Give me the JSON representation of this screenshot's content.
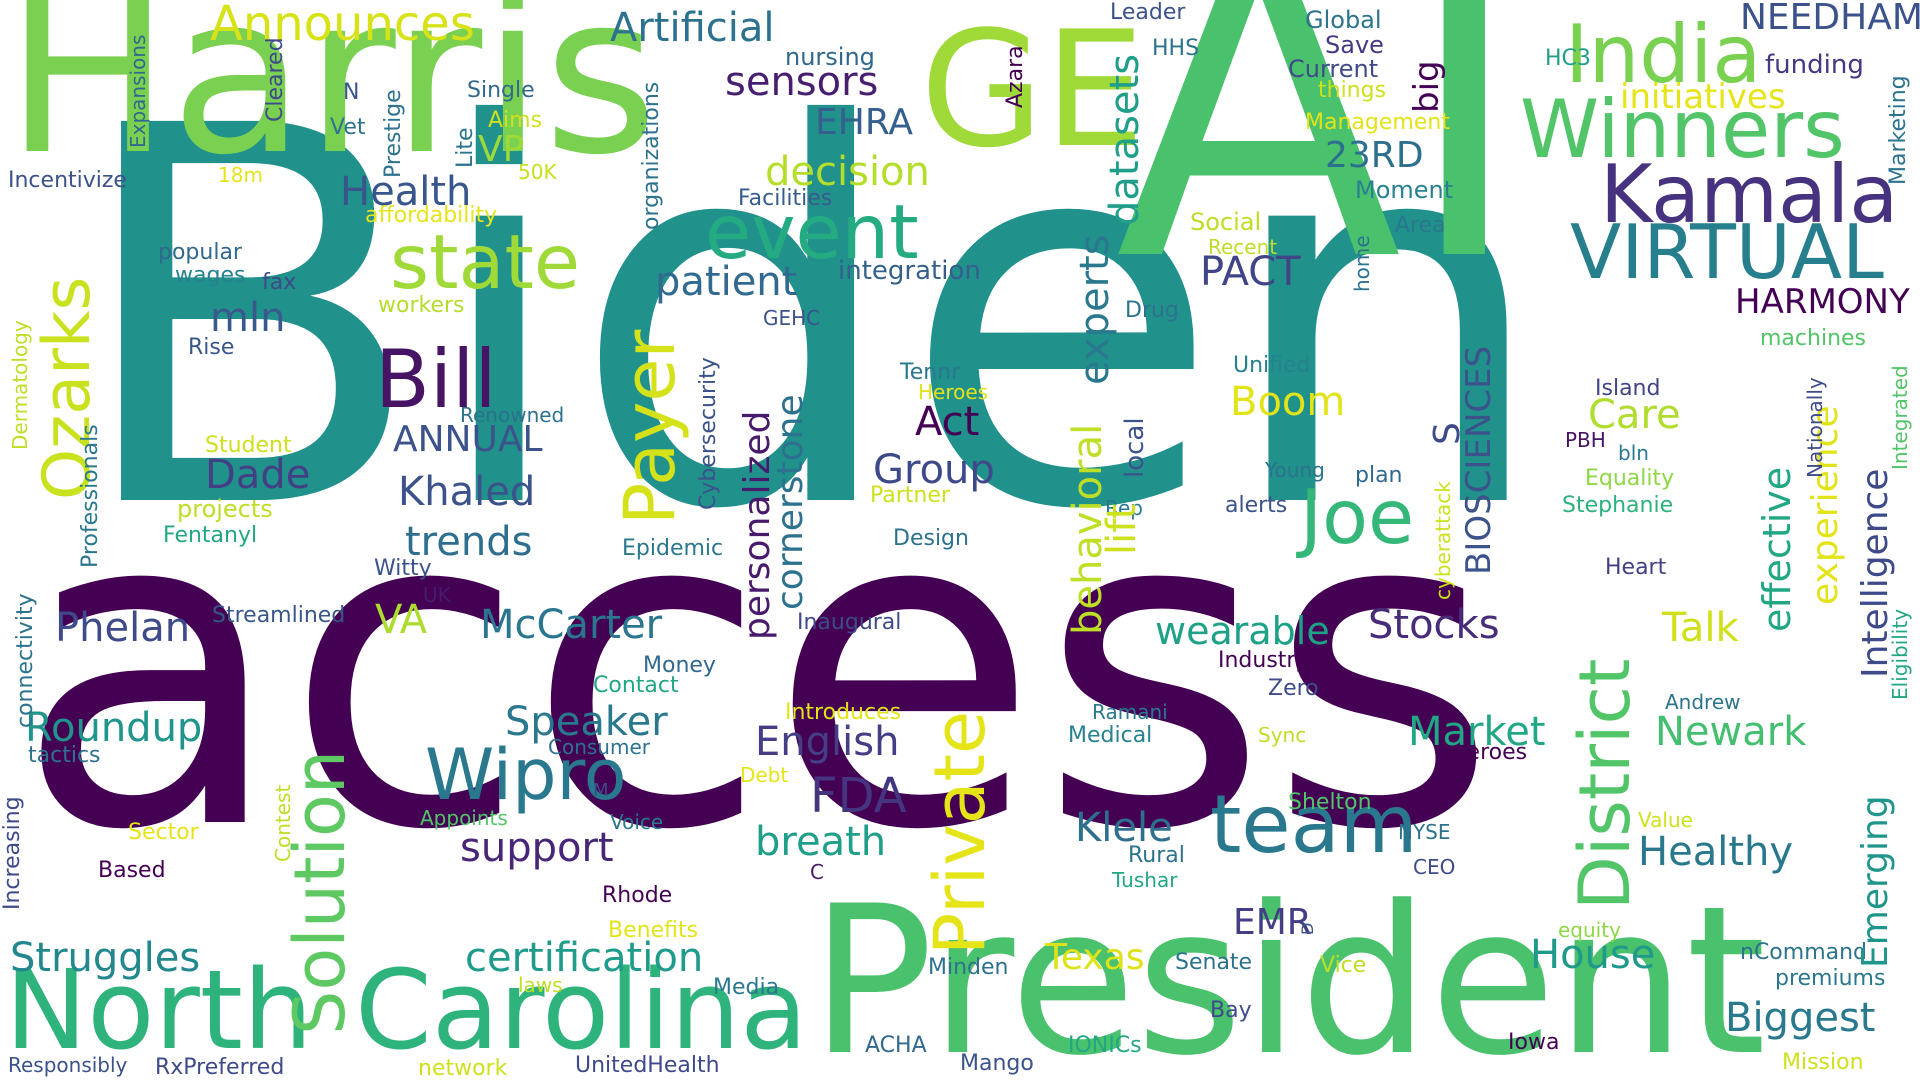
{
  "palette": {
    "purple": "#440154",
    "indigo": "#3e4a89",
    "blue": "#31688e",
    "teal": "#21918c",
    "green": "#35b779",
    "lime": "#90d743",
    "yellow": "#fde725"
  },
  "words": [
    {
      "text": "Biden",
      "color": "#21918c"
    },
    {
      "text": "access",
      "color": "#440154"
    },
    {
      "text": "AI",
      "color": "#4ac16d"
    },
    {
      "text": "Harris",
      "color": "#7ad151"
    },
    {
      "text": "President",
      "color": "#4ac16d"
    },
    {
      "text": "GE",
      "color": "#a0da39"
    },
    {
      "text": "North",
      "color": "#2eb37c"
    },
    {
      "text": "Carolina",
      "color": "#2eb37c"
    },
    {
      "text": "India",
      "color": "#7ad151"
    },
    {
      "text": "Winners",
      "color": "#52c569"
    },
    {
      "text": "Kamala",
      "color": "#46327e"
    },
    {
      "text": "VIRTUAL",
      "color": "#277f8e"
    },
    {
      "text": "team",
      "color": "#2a788e"
    },
    {
      "text": "Bill",
      "color": "#471365"
    },
    {
      "text": "state",
      "color": "#a0da39"
    },
    {
      "text": "event",
      "color": "#25ab82"
    },
    {
      "text": "Joe",
      "color": "#35b779"
    },
    {
      "text": "Wipro",
      "color": "#2a788e"
    },
    {
      "text": "Solution",
      "color": "#5ec962"
    },
    {
      "text": "Ozarks",
      "color": "#cae11f"
    },
    {
      "text": "Payer",
      "color": "#d5e21a"
    },
    {
      "text": "Private",
      "color": "#e5e419"
    },
    {
      "text": "District",
      "color": "#52c569"
    },
    {
      "text": "Announces",
      "color": "#d8e219"
    },
    {
      "text": "Artificial",
      "color": "#2c728e"
    },
    {
      "text": "NEEDHAM",
      "color": "#3b528b"
    },
    {
      "text": "initiatives",
      "color": "#e7e419"
    },
    {
      "text": "funding",
      "color": "#443983"
    },
    {
      "text": "nursing",
      "color": "#31688e"
    },
    {
      "text": "sensors",
      "color": "#481f70"
    },
    {
      "text": "EHRA",
      "color": "#355f8d"
    },
    {
      "text": "decision",
      "color": "#b5de2b"
    },
    {
      "text": "23RD",
      "color": "#2d708e"
    },
    {
      "text": "PACT",
      "color": "#414487"
    },
    {
      "text": "HARMONY",
      "color": "#440154"
    },
    {
      "text": "Health",
      "color": "#39568c"
    },
    {
      "text": "patient",
      "color": "#306a8e"
    },
    {
      "text": "integration",
      "color": "#355f8d"
    },
    {
      "text": "mln",
      "color": "#38598c"
    },
    {
      "text": "Dade",
      "color": "#423f85"
    },
    {
      "text": "Khaled",
      "color": "#3b528b"
    },
    {
      "text": "trends",
      "color": "#2e6e8e"
    },
    {
      "text": "ANNUAL",
      "color": "#3b528b"
    },
    {
      "text": "Act",
      "color": "#440154"
    },
    {
      "text": "Group",
      "color": "#3e4989"
    },
    {
      "text": "Boom",
      "color": "#e2e418"
    },
    {
      "text": "Care",
      "color": "#b0dd2f"
    },
    {
      "text": "Stocks",
      "color": "#472c7a"
    },
    {
      "text": "Talk",
      "color": "#d0e11c"
    },
    {
      "text": "Phelan",
      "color": "#3e4a89"
    },
    {
      "text": "McCarter",
      "color": "#2a768e"
    },
    {
      "text": "VA",
      "color": "#addc30"
    },
    {
      "text": "wearable",
      "color": "#1fa188"
    },
    {
      "text": "Roundup",
      "color": "#1f958b"
    },
    {
      "text": "Speaker",
      "color": "#2a788e"
    },
    {
      "text": "English",
      "color": "#433e85"
    },
    {
      "text": "FDA",
      "color": "#453581"
    },
    {
      "text": "support",
      "color": "#482677"
    },
    {
      "text": "breath",
      "color": "#1f9e89"
    },
    {
      "text": "Klele",
      "color": "#2e6f8e"
    },
    {
      "text": "Market",
      "color": "#22a785"
    },
    {
      "text": "Newark",
      "color": "#44bf70"
    },
    {
      "text": "Healthy",
      "color": "#2a788e"
    },
    {
      "text": "Struggles",
      "color": "#23888e"
    },
    {
      "text": "certification",
      "color": "#1e9b8a"
    },
    {
      "text": "Texas",
      "color": "#dde318"
    },
    {
      "text": "House",
      "color": "#1f9a8a"
    },
    {
      "text": "Biggest",
      "color": "#29798e"
    },
    {
      "text": "EMR",
      "color": "#433e85"
    },
    {
      "text": "Global",
      "color": "#2c738e"
    },
    {
      "text": "Save",
      "color": "#443a83"
    },
    {
      "text": "Current",
      "color": "#3e4a89"
    },
    {
      "text": "things",
      "color": "#cde11d"
    },
    {
      "text": "Management",
      "color": "#e2e418"
    },
    {
      "text": "HC3",
      "color": "#1f9e89"
    },
    {
      "text": "Leader",
      "color": "#3b528b"
    },
    {
      "text": "HHS",
      "color": "#2c738e"
    },
    {
      "text": "Moment",
      "color": "#26828e"
    },
    {
      "text": "Area",
      "color": "#2a788e"
    },
    {
      "text": "Social",
      "color": "#bddf26"
    },
    {
      "text": "Recent",
      "color": "#bddf26"
    },
    {
      "text": "Facilities",
      "color": "#365c8d"
    },
    {
      "text": "Single",
      "color": "#31688e"
    },
    {
      "text": "Aims",
      "color": "#cde11d"
    },
    {
      "text": "50K",
      "color": "#c8e020"
    },
    {
      "text": "VP",
      "color": "#9dd93b"
    },
    {
      "text": "18m",
      "color": "#e5e419"
    },
    {
      "text": "Incentivize",
      "color": "#3b528b"
    },
    {
      "text": "affordability",
      "color": "#e7e419"
    },
    {
      "text": "N",
      "color": "#39568c"
    },
    {
      "text": "Vet",
      "color": "#2c728e"
    },
    {
      "text": "popular",
      "color": "#31688e"
    },
    {
      "text": "wages",
      "color": "#26828e"
    },
    {
      "text": "fax",
      "color": "#3e4a89"
    },
    {
      "text": "Rise",
      "color": "#39568c"
    },
    {
      "text": "workers",
      "color": "#b5de2b"
    },
    {
      "text": "Student",
      "color": "#cde11d"
    },
    {
      "text": "projects",
      "color": "#bddf26"
    },
    {
      "text": "Fentanyl",
      "color": "#22a785"
    },
    {
      "text": "Renowned",
      "color": "#2c728e"
    },
    {
      "text": "Witty",
      "color": "#3b528b"
    },
    {
      "text": "UK",
      "color": "#481a6c"
    },
    {
      "text": "Streamlined",
      "color": "#39568c"
    },
    {
      "text": "Epidemic",
      "color": "#2a788e"
    },
    {
      "text": "Inaugural",
      "color": "#3e4a89"
    },
    {
      "text": "GEHC",
      "color": "#3b528b"
    },
    {
      "text": "Drug",
      "color": "#2c738e"
    },
    {
      "text": "Tennr",
      "color": "#2a788e"
    },
    {
      "text": "Heroes",
      "color": "#e2e418"
    },
    {
      "text": "Partner",
      "color": "#cde11d"
    },
    {
      "text": "Design",
      "color": "#2c728e"
    },
    {
      "text": "Unified",
      "color": "#26828e"
    },
    {
      "text": "Young",
      "color": "#2c738e"
    },
    {
      "text": "alerts",
      "color": "#3b528b"
    },
    {
      "text": "plan",
      "color": "#31688e"
    },
    {
      "text": "Rep",
      "color": "#2a788e"
    },
    {
      "text": "Island",
      "color": "#414487"
    },
    {
      "text": "PBH",
      "color": "#471365"
    },
    {
      "text": "bln",
      "color": "#2a788e"
    },
    {
      "text": "Equality",
      "color": "#8fd744"
    },
    {
      "text": "Stephanie",
      "color": "#2db27d"
    },
    {
      "text": "Heart",
      "color": "#423f85"
    },
    {
      "text": "machines",
      "color": "#52c569"
    },
    {
      "text": "Money",
      "color": "#31688e"
    },
    {
      "text": "Contact",
      "color": "#22a785"
    },
    {
      "text": "Consumer",
      "color": "#2c728e"
    },
    {
      "text": "Industry",
      "color": "#440154"
    },
    {
      "text": "Zero",
      "color": "#3e4a89"
    },
    {
      "text": "Introduces",
      "color": "#e2e418"
    },
    {
      "text": "Debt",
      "color": "#e5e419"
    },
    {
      "text": "Ramani",
      "color": "#2a788e"
    },
    {
      "text": "Medical",
      "color": "#26828e"
    },
    {
      "text": "Sync",
      "color": "#bddf26"
    },
    {
      "text": "zeroes",
      "color": "#440154"
    },
    {
      "text": "Andrew",
      "color": "#2c738e"
    },
    {
      "text": "Shelton",
      "color": "#52c569"
    },
    {
      "text": "NYSE",
      "color": "#2c728e"
    },
    {
      "text": "CEO",
      "color": "#3e4a89"
    },
    {
      "text": "Value",
      "color": "#cde11d"
    },
    {
      "text": "Rural",
      "color": "#2c738e"
    },
    {
      "text": "Tushar",
      "color": "#22a785"
    },
    {
      "text": "Appoints",
      "color": "#52c569"
    },
    {
      "text": "Voice",
      "color": "#2a788e"
    },
    {
      "text": "M",
      "color": "#3e4a89"
    },
    {
      "text": "C",
      "color": "#481a6c"
    },
    {
      "text": "Rhode",
      "color": "#440154"
    },
    {
      "text": "Benefits",
      "color": "#e2e418"
    },
    {
      "text": "Sector",
      "color": "#e5e419"
    },
    {
      "text": "Based",
      "color": "#440154"
    },
    {
      "text": "tactics",
      "color": "#2c738e"
    },
    {
      "text": "laws",
      "color": "#bddf26"
    },
    {
      "text": "Media",
      "color": "#2a788e"
    },
    {
      "text": "Minden",
      "color": "#2c728e"
    },
    {
      "text": "Senate",
      "color": "#2c738e"
    },
    {
      "text": "Vice",
      "color": "#bddf26"
    },
    {
      "text": "Bay",
      "color": "#3e4a89"
    },
    {
      "text": "equity",
      "color": "#8fd744"
    },
    {
      "text": "nCommand",
      "color": "#2c738e"
    },
    {
      "text": "premiums",
      "color": "#2a788e"
    },
    {
      "text": "Iowa",
      "color": "#440154"
    },
    {
      "text": "Mission",
      "color": "#cde11d"
    },
    {
      "text": "Responsibly",
      "color": "#3b528b"
    },
    {
      "text": "RxPreferred",
      "color": "#3e4a89"
    },
    {
      "text": "network",
      "color": "#cde11d"
    },
    {
      "text": "UnitedHealth",
      "color": "#3e4a89"
    },
    {
      "text": "ACHA",
      "color": "#31688e"
    },
    {
      "text": "Mango",
      "color": "#3b528b"
    },
    {
      "text": "IONICs",
      "color": "#22a785"
    },
    {
      "text": "Expansions",
      "color": "#31688e"
    },
    {
      "text": "Cleared",
      "color": "#3e4a89"
    },
    {
      "text": "Prestige",
      "color": "#2c738e"
    },
    {
      "text": "Lite",
      "color": "#2c738e"
    },
    {
      "text": "organizations",
      "color": "#2c728e"
    },
    {
      "text": "Azara",
      "color": "#440154"
    },
    {
      "text": "big",
      "color": "#440154"
    },
    {
      "text": "datasets",
      "color": "#1f9e89"
    },
    {
      "text": "Marketing",
      "color": "#2c738e"
    },
    {
      "text": "Dermatology",
      "color": "#bddf26"
    },
    {
      "text": "Professionals",
      "color": "#2a788e"
    },
    {
      "text": "connectivity",
      "color": "#2c738e"
    },
    {
      "text": "Increasing",
      "color": "#3e4a89"
    },
    {
      "text": "Contest",
      "color": "#bddf26"
    },
    {
      "text": "Cybersecurity",
      "color": "#3b528b"
    },
    {
      "text": "personalized",
      "color": "#481a6c"
    },
    {
      "text": "cornerstone",
      "color": "#2c728e"
    },
    {
      "text": "experts",
      "color": "#2a788e"
    },
    {
      "text": "behavioral",
      "color": "#bddf26"
    },
    {
      "text": "lift",
      "color": "#cde11d"
    },
    {
      "text": "local",
      "color": "#3b528b"
    },
    {
      "text": "home",
      "color": "#2c738e"
    },
    {
      "text": "S",
      "color": "#3e4a89"
    },
    {
      "text": "BIOSCIENCES",
      "color": "#3b528b"
    },
    {
      "text": "cyberattack",
      "color": "#cde11d"
    },
    {
      "text": "effective",
      "color": "#22a785"
    },
    {
      "text": "experience",
      "color": "#e2e418"
    },
    {
      "text": "Intelligence",
      "color": "#3e4a89"
    },
    {
      "text": "Emerging",
      "color": "#1f958b"
    },
    {
      "text": "Nationally",
      "color": "#3e4a89"
    },
    {
      "text": "Integrated",
      "color": "#52c569"
    },
    {
      "text": "Eligibility",
      "color": "#22a785"
    },
    {
      "text": "D",
      "color": "#3b528b"
    }
  ]
}
